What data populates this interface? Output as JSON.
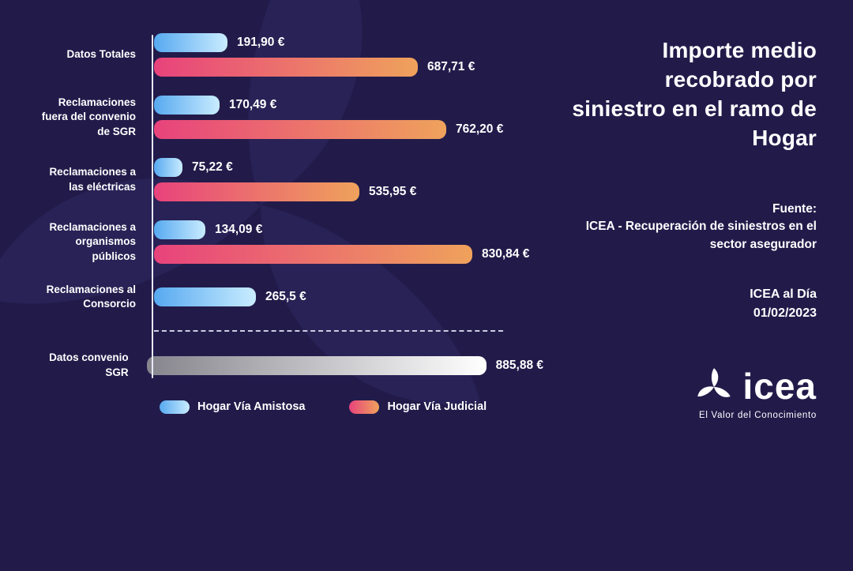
{
  "title": "Importe medio recobrado por siniestro en el ramo de Hogar",
  "source": {
    "label": "Fuente:",
    "text": "ICEA - Recuperación de siniestros en el sector asegurador"
  },
  "publication": {
    "name": "ICEA al Día",
    "date": "01/02/2023"
  },
  "logo": {
    "text": "icea",
    "tagline": "El Valor del Conocimiento"
  },
  "legend": [
    {
      "series": "amistosa",
      "name": "Hogar Vía Amistosa"
    },
    {
      "series": "judicial",
      "name": "Hogar Vía Judicial"
    }
  ],
  "chart_data": {
    "type": "bar",
    "orientation": "horizontal",
    "title": "Importe medio recobrado por siniestro en el ramo de Hogar",
    "unit": "€",
    "value_axis": {
      "min": 0,
      "max_hint": 900,
      "ticks_visible": false
    },
    "series_names": {
      "amistosa": "Hogar Vía Amistosa",
      "judicial": "Hogar Vía Judicial",
      "sgr": "Datos convenio SGR"
    },
    "rows": [
      {
        "category": "Datos Totales",
        "bars": [
          {
            "series": "amistosa",
            "value": 191.9,
            "label": "191,90 €"
          },
          {
            "series": "judicial",
            "value": 687.71,
            "label": "687,71 €"
          }
        ]
      },
      {
        "category": "Reclamaciones fuera del convenio de SGR",
        "bars": [
          {
            "series": "amistosa",
            "value": 170.49,
            "label": "170,49 €"
          },
          {
            "series": "judicial",
            "value": 762.2,
            "label": "762,20 €"
          }
        ]
      },
      {
        "category": "Reclamaciones a las eléctricas",
        "bars": [
          {
            "series": "amistosa",
            "value": 75.22,
            "label": "75,22 €"
          },
          {
            "series": "judicial",
            "value": 535.95,
            "label": "535,95 €"
          }
        ]
      },
      {
        "category": "Reclamaciones a organismos públicos",
        "bars": [
          {
            "series": "amistosa",
            "value": 134.09,
            "label": "134,09 €"
          },
          {
            "series": "judicial",
            "value": 830.84,
            "label": "830,84 €"
          }
        ]
      },
      {
        "category": "Reclamaciones al Consorcio",
        "bars": [
          {
            "series": "amistosa",
            "value": 265.5,
            "label": "265,5 €"
          }
        ]
      },
      {
        "category": "Datos convenio SGR",
        "separator_above": true,
        "bars": [
          {
            "series": "sgr",
            "value": 885.88,
            "label": "885,88 €"
          }
        ]
      }
    ]
  },
  "colors": {
    "background": "#221b4a",
    "swirl": "#2b2459",
    "text": "#ffffff",
    "axis": "#e7e9f5",
    "divider": "#c9cde2",
    "bar_blue_start": "#57a9f0",
    "bar_blue_end": "#c9ecff",
    "bar_pink_start": "#e8437c",
    "bar_orange_end": "#efa25c",
    "bar_gray_start": "#86858d",
    "bar_gray_end": "#ffffff"
  }
}
